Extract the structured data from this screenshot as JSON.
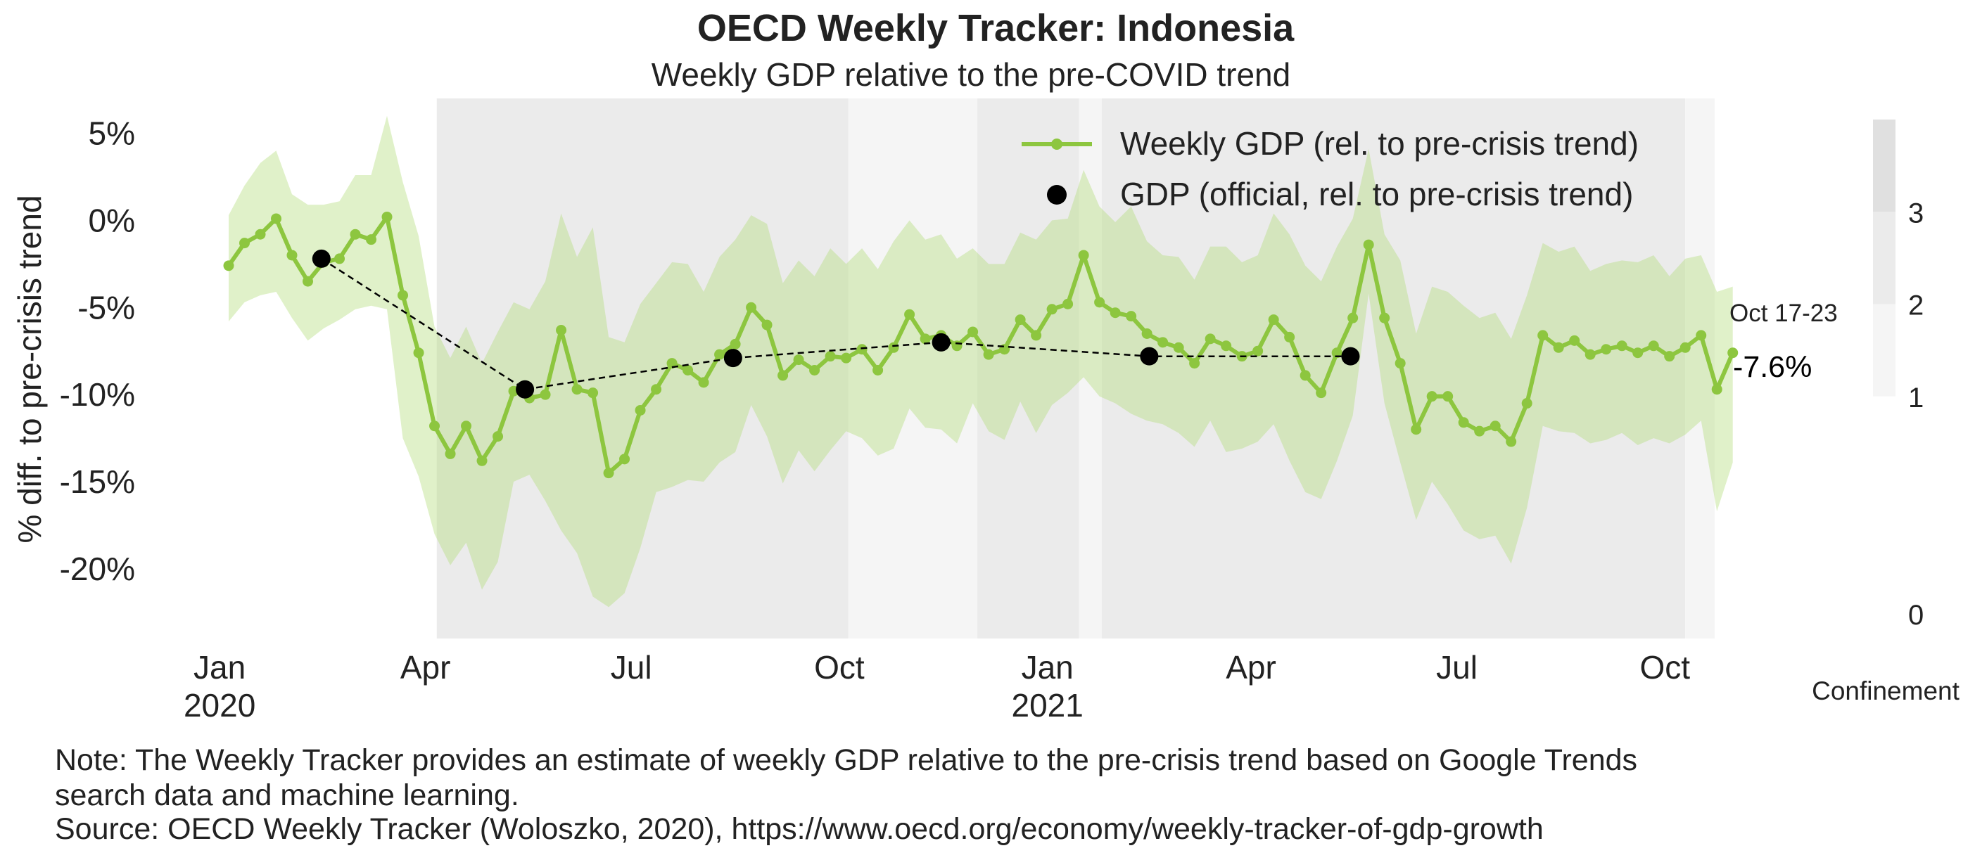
{
  "chart_data": {
    "type": "line",
    "title": "OECD Weekly Tracker: Indonesia",
    "subtitle": "Weekly GDP relative to the pre-COVID trend",
    "ylabel": "% diff. to pre-crisis trend",
    "ylim": [
      -24,
      7
    ],
    "yticks": [
      5,
      0,
      -5,
      -10,
      -15,
      -20
    ],
    "ytick_labels": [
      "5%",
      "0%",
      "-5%",
      "-10%",
      "-15%",
      "-20%"
    ],
    "x_start": "2020-01-05",
    "x_end": "2021-10-23",
    "xticks": [
      {
        "date": "2020-01-01",
        "label": "Jan",
        "sublabel": "2020"
      },
      {
        "date": "2020-04-01",
        "label": "Apr",
        "sublabel": ""
      },
      {
        "date": "2020-07-01",
        "label": "Jul",
        "sublabel": ""
      },
      {
        "date": "2020-10-01",
        "label": "Oct",
        "sublabel": ""
      },
      {
        "date": "2021-01-01",
        "label": "Jan",
        "sublabel": "2021"
      },
      {
        "date": "2021-04-01",
        "label": "Apr",
        "sublabel": ""
      },
      {
        "date": "2021-07-01",
        "label": "Jul",
        "sublabel": ""
      },
      {
        "date": "2021-10-01",
        "label": "Oct",
        "sublabel": ""
      }
    ],
    "grid": false,
    "legend_position": "top-right",
    "series": [
      {
        "name": "Weekly GDP (rel. to pre-crisis trend)",
        "color": "#8dc63f",
        "band_color": "#b5dd7e",
        "band_opacity": 0.42,
        "weekly": [
          -2.6,
          -1.3,
          -0.8,
          0.1,
          -2.0,
          -3.5,
          -2.4,
          -2.2,
          -0.8,
          -1.1,
          0.2,
          -4.3,
          -7.6,
          -11.8,
          -13.4,
          -11.8,
          -13.8,
          -12.4,
          -9.8,
          -10.2,
          -10.0,
          -6.3,
          -9.7,
          -9.9,
          -14.5,
          -13.7,
          -10.9,
          -9.7,
          -8.2,
          -8.6,
          -9.3,
          -7.7,
          -7.1,
          -5.0,
          -6.0,
          -8.9,
          -8.0,
          -8.6,
          -7.8,
          -7.9,
          -7.4,
          -8.6,
          -7.3,
          -5.4,
          -6.8,
          -6.6,
          -7.2,
          -6.4,
          -7.7,
          -7.4,
          -5.7,
          -6.6,
          -5.1,
          -4.8,
          -2.0,
          -4.7,
          -5.3,
          -5.5,
          -6.5,
          -7.0,
          -7.3,
          -8.2,
          -6.8,
          -7.2,
          -7.8,
          -7.5,
          -5.7,
          -6.7,
          -8.9,
          -9.9,
          -7.6,
          -5.6,
          -1.4,
          -5.6,
          -8.2,
          -12.0,
          -10.1,
          -10.1,
          -11.6,
          -12.1,
          -11.8,
          -12.7,
          -10.5,
          -6.6,
          -7.3,
          -6.9,
          -7.7,
          -7.4,
          -7.2,
          -7.6,
          -7.2,
          -7.8,
          -7.3,
          -6.6,
          -9.7,
          -7.6
        ],
        "lower": [
          -5.8,
          -4.7,
          -4.3,
          -4.1,
          -5.6,
          -6.9,
          -6.2,
          -5.7,
          -5.1,
          -4.9,
          -5.1,
          -12.5,
          -14.7,
          -18.0,
          -19.8,
          -18.5,
          -21.2,
          -19.6,
          -15.0,
          -14.6,
          -16.1,
          -17.8,
          -19.1,
          -21.6,
          -22.2,
          -21.4,
          -18.8,
          -15.6,
          -15.3,
          -14.9,
          -15.0,
          -13.9,
          -13.3,
          -10.6,
          -12.4,
          -15.1,
          -13.2,
          -14.4,
          -13.2,
          -12.1,
          -12.5,
          -13.5,
          -13.1,
          -10.8,
          -11.9,
          -12.0,
          -12.8,
          -10.5,
          -12.1,
          -12.6,
          -10.4,
          -12.2,
          -10.6,
          -9.9,
          -9.0,
          -10.1,
          -10.5,
          -11.1,
          -11.5,
          -11.7,
          -12.2,
          -13.0,
          -11.5,
          -13.3,
          -13.1,
          -12.7,
          -11.7,
          -13.8,
          -15.6,
          -16.0,
          -13.8,
          -11.2,
          -4.2,
          -10.5,
          -13.9,
          -17.2,
          -15.0,
          -16.3,
          -17.8,
          -18.3,
          -18.1,
          -19.7,
          -16.5,
          -11.8,
          -12.1,
          -12.2,
          -12.8,
          -12.6,
          -12.2,
          -12.9,
          -12.5,
          -12.8,
          -12.3,
          -11.5,
          -16.7,
          -13.9
        ],
        "upper": [
          0.3,
          2.0,
          3.3,
          4.0,
          1.5,
          0.9,
          0.9,
          1.1,
          2.6,
          2.6,
          6.0,
          2.2,
          -0.9,
          -6.1,
          -7.9,
          -6.1,
          -8.2,
          -6.4,
          -4.7,
          -5.1,
          -3.5,
          0.4,
          -2.1,
          -0.4,
          -6.7,
          -7.0,
          -4.8,
          -3.6,
          -2.4,
          -2.5,
          -4.1,
          -2.1,
          -1.1,
          0.3,
          -0.2,
          -3.6,
          -2.3,
          -3.2,
          -1.6,
          -2.5,
          -1.6,
          -2.8,
          -1.2,
          0.0,
          -1.1,
          -0.8,
          -2.2,
          -1.6,
          -2.5,
          -2.5,
          -0.7,
          -1.1,
          0.0,
          0.1,
          2.9,
          0.8,
          -0.1,
          0.8,
          -1.2,
          -2.0,
          -2.1,
          -3.4,
          -1.5,
          -1.5,
          -2.4,
          -2.0,
          0.4,
          -0.8,
          -2.6,
          -3.5,
          -1.5,
          0.1,
          4.1,
          -0.8,
          -2.3,
          -6.5,
          -3.8,
          -4.1,
          -4.9,
          -5.6,
          -5.3,
          -6.8,
          -4.3,
          -1.3,
          -1.8,
          -1.5,
          -2.9,
          -2.5,
          -2.3,
          -2.4,
          -2.0,
          -3.2,
          -2.2,
          -2.0,
          -4.1,
          -3.8
        ]
      },
      {
        "name": "GDP (official, rel. to pre-crisis trend)",
        "color": "#000000",
        "points": [
          {
            "date": "2020-02-15",
            "value": -2.2
          },
          {
            "date": "2020-05-15",
            "value": -9.7
          },
          {
            "date": "2020-08-15",
            "value": -7.9
          },
          {
            "date": "2020-11-15",
            "value": -7.0
          },
          {
            "date": "2021-02-15",
            "value": -7.8
          },
          {
            "date": "2021-05-15",
            "value": -7.8
          }
        ]
      }
    ],
    "last_point": {
      "label": "Oct 17-23",
      "value_label": "-7.6%"
    },
    "confinement": {
      "label": "Confinement",
      "scale_ticks": [
        "3",
        "2",
        "1",
        "0"
      ],
      "colors": [
        "#ffffff",
        "#f5f5f5",
        "#ebebeb",
        "#e0e0e0"
      ],
      "periods": [
        {
          "start": "2020-04-06",
          "end": "2020-10-05",
          "level": 2
        },
        {
          "start": "2020-10-05",
          "end": "2020-12-01",
          "level": 1
        },
        {
          "start": "2020-12-01",
          "end": "2021-01-15",
          "level": 2
        },
        {
          "start": "2021-01-15",
          "end": "2021-01-25",
          "level": 1
        },
        {
          "start": "2021-01-25",
          "end": "2021-10-10",
          "level": 2
        },
        {
          "start": "2021-10-10",
          "end": "2021-10-23",
          "level": 1
        }
      ]
    }
  },
  "notes": {
    "line1": "Note: The Weekly Tracker provides an estimate of weekly GDP relative to the pre-crisis trend based on Google Trends",
    "line2": "search data and machine learning.",
    "line3": "Source: OECD Weekly Tracker (Woloszko, 2020), https://www.oecd.org/economy/weekly-tracker-of-gdp-growth"
  }
}
